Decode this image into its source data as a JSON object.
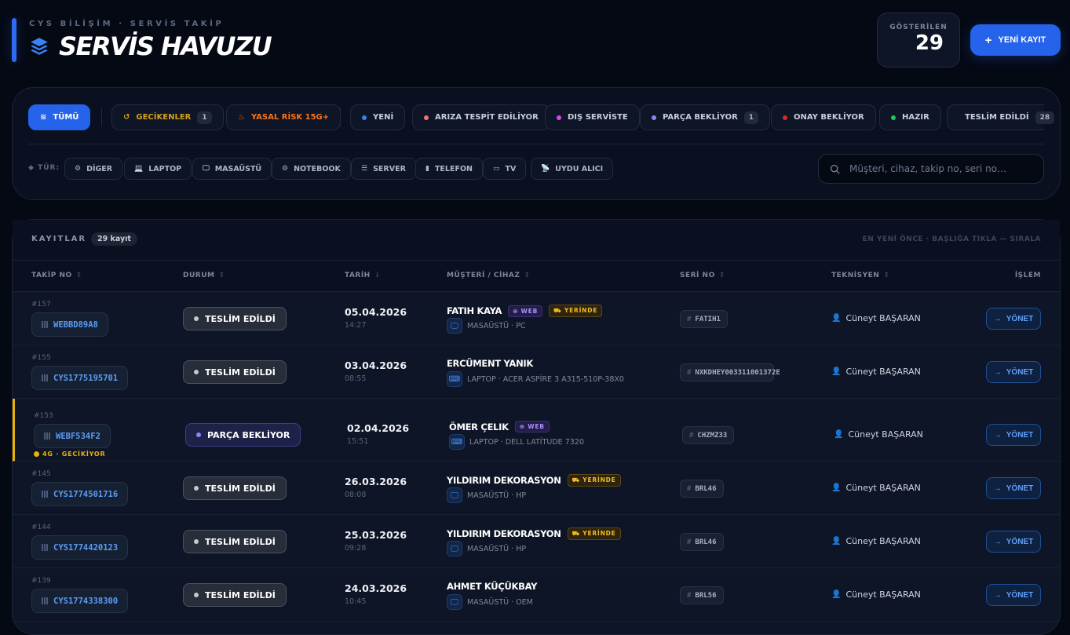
{
  "header": {
    "eyebrow": "CYS BİLİŞİM · SERVİS TAKİP",
    "title": "SERVİS HAVUZU",
    "shown_label": "GÖSTERİLEN",
    "shown_value": "29",
    "new_button": "YENİ KAYIT",
    "accent": "#2563eb"
  },
  "status_filters": [
    {
      "label": "TÜMÜ",
      "active": true,
      "icon": "layers-icon"
    },
    {
      "label": "GECİKENLER",
      "count": "1",
      "color": "#d4a017",
      "icon": "history-icon"
    },
    {
      "label": "YASAL RİSK 15G+",
      "color": "#f97316",
      "icon": "fire-icon"
    },
    {
      "label": "YENİ",
      "dot": "#3b82f6"
    },
    {
      "label": "ARIZA TESPİT EDİLİYOR",
      "dot": "#f87171"
    },
    {
      "label": "DIŞ SERVİSTE",
      "dot": "#d946ef"
    },
    {
      "label": "PARÇA BEKLİYOR",
      "dot": "#818cf8",
      "count": "1"
    },
    {
      "label": "ONAY BEKLİYOR",
      "dot": "#dc2626"
    },
    {
      "label": "HAZIR",
      "dot": "#22c55e"
    },
    {
      "label": "TESLİM EDİLDİ",
      "dot": "#d1d5db",
      "count": "28"
    }
  ],
  "type_filters": {
    "label": "TÜR:",
    "items": [
      {
        "label": "DİGER",
        "icon": "chip-icon"
      },
      {
        "label": "LAPTOP",
        "icon": "laptop-icon"
      },
      {
        "label": "MASAÜSTÜ",
        "icon": "desktop-icon"
      },
      {
        "label": "NOTEBOOK",
        "icon": "chip-icon"
      },
      {
        "label": "SERVER",
        "icon": "server-icon"
      },
      {
        "label": "TELEFON",
        "icon": "phone-icon"
      },
      {
        "label": "TV",
        "icon": "tv-icon"
      },
      {
        "label": "UYDU ALICI",
        "icon": "satellite-icon"
      }
    ]
  },
  "search": {
    "placeholder": "Müşteri, cihaz, takip no, seri no…"
  },
  "records": {
    "title": "KAYITLAR",
    "count": "29 kayıt",
    "sort_hint": "EN YENİ ÖNCE · BAŞLIĞA TIKLA — SIRALA",
    "columns": [
      "TAKİP NO",
      "DURUM",
      "TARİH",
      "MÜŞTERİ / CİHAZ",
      "SERİ NO",
      "TEKNİSYEN",
      "İŞLEM"
    ],
    "action_label": "YÖNET",
    "rows": [
      {
        "num": "#157",
        "code": "WEBBD89A8",
        "status": "TESLİM EDİLDİ",
        "date": "05.04.2026",
        "time": "14:27",
        "customer": "FATIH KAYA",
        "tags": [
          "WEB",
          "YERİNDE"
        ],
        "device": "MASAÜSTÜ · PC",
        "device_icon": "desktop-icon",
        "serial": "FATIH1",
        "tech": "Cüneyt BAŞARAN"
      },
      {
        "num": "#155",
        "code": "CYS1775195701",
        "status": "TESLİM EDİLDİ",
        "date": "03.04.2026",
        "time": "08:55",
        "customer": "ERCÜMENT YANIK",
        "tags": [],
        "device": "LAPTOP · ACER ASPİRE 3 A315-510P-38X0",
        "device_icon": "laptop-icon",
        "serial": "NXKDHEY003311001372E",
        "tech": "Cüneyt BAŞARAN"
      },
      {
        "num": "#153",
        "code": "WEBF534F2",
        "status": "PARÇA BEKLİYOR",
        "delay": "4G · GECİKİYOR",
        "date": "02.04.2026",
        "time": "15:51",
        "customer": "ÖMER ÇELIK",
        "tags": [
          "WEB"
        ],
        "device": "LAPTOP · DELL LATİTUDE 7320",
        "device_icon": "laptop-icon",
        "serial": "CHZMZ33",
        "tech": "Cüneyt BAŞARAN"
      },
      {
        "num": "#145",
        "code": "CYS1774501716",
        "status": "TESLİM EDİLDİ",
        "date": "26.03.2026",
        "time": "08:08",
        "customer": "YILDIRIM DEKORASYON",
        "tags": [
          "YERİNDE"
        ],
        "device": "MASAÜSTÜ · HP",
        "device_icon": "desktop-icon",
        "serial": "BRL46",
        "tech": "Cüneyt BAŞARAN"
      },
      {
        "num": "#144",
        "code": "CYS1774420123",
        "status": "TESLİM EDİLDİ",
        "date": "25.03.2026",
        "time": "09:28",
        "customer": "YILDIRIM DEKORASYON",
        "tags": [
          "YERİNDE"
        ],
        "device": "MASAÜSTÜ · HP",
        "device_icon": "desktop-icon",
        "serial": "BRL46",
        "tech": "Cüneyt BAŞARAN"
      },
      {
        "num": "#139",
        "code": "CYS1774338300",
        "status": "TESLİM EDİLDİ",
        "date": "24.03.2026",
        "time": "10:45",
        "customer": "AHMET KÜÇÜKBAY",
        "tags": [],
        "device": "MASAÜSTÜ · OEM",
        "device_icon": "desktop-icon",
        "serial": "BRL56",
        "tech": "Cüneyt BAŞARAN"
      }
    ]
  }
}
